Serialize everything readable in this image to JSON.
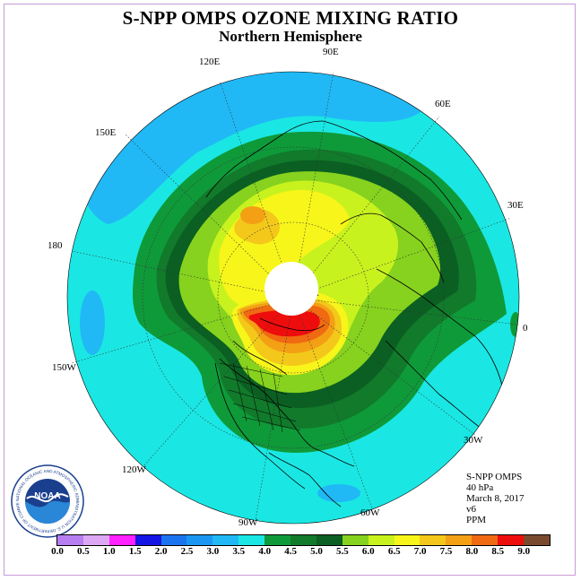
{
  "title": "S-NPP OMPS OZONE MIXING RATIO",
  "subtitle": "Northern Hemisphere",
  "longitude_labels": {
    "e90": "90E",
    "e120": "120E",
    "e60": "60E",
    "e150": "150E",
    "e30": "30E",
    "e180": "180",
    "e0": "0",
    "w150": "150W",
    "w30": "30W",
    "w120": "120W",
    "w60": "60W",
    "w90": "90W"
  },
  "info": {
    "instrument": "S-NPP OMPS",
    "level": "40 hPa",
    "date": "March 8, 2017",
    "version": "v6",
    "units": "PPM"
  },
  "logo": {
    "name": "NOAA",
    "ring_text": "NATIONAL OCEANIC AND ATMOSPHERIC ADMINISTRATION U.S. DEPARTMENT OF COMMERCE"
  },
  "colorbar": {
    "ticks": [
      "0.0",
      "0.5",
      "1.0",
      "1.5",
      "2.0",
      "2.5",
      "3.0",
      "3.5",
      "4.0",
      "4.5",
      "5.0",
      "5.5",
      "6.0",
      "6.5",
      "7.0",
      "7.5",
      "8.0",
      "8.5",
      "9.0"
    ],
    "colors": [
      "#b77ef2",
      "#dca8f3",
      "#ff21ff",
      "#1515e6",
      "#1b74ef",
      "#1a96f2",
      "#20b9f6",
      "#1ae7e3",
      "#0f9a3a",
      "#117a2b",
      "#0b5f22",
      "#86d21e",
      "#c8f21e",
      "#f8f51a",
      "#f3c81a",
      "#f3a015",
      "#f06a12",
      "#ee0d0d",
      "#7a4a2e"
    ]
  }
}
